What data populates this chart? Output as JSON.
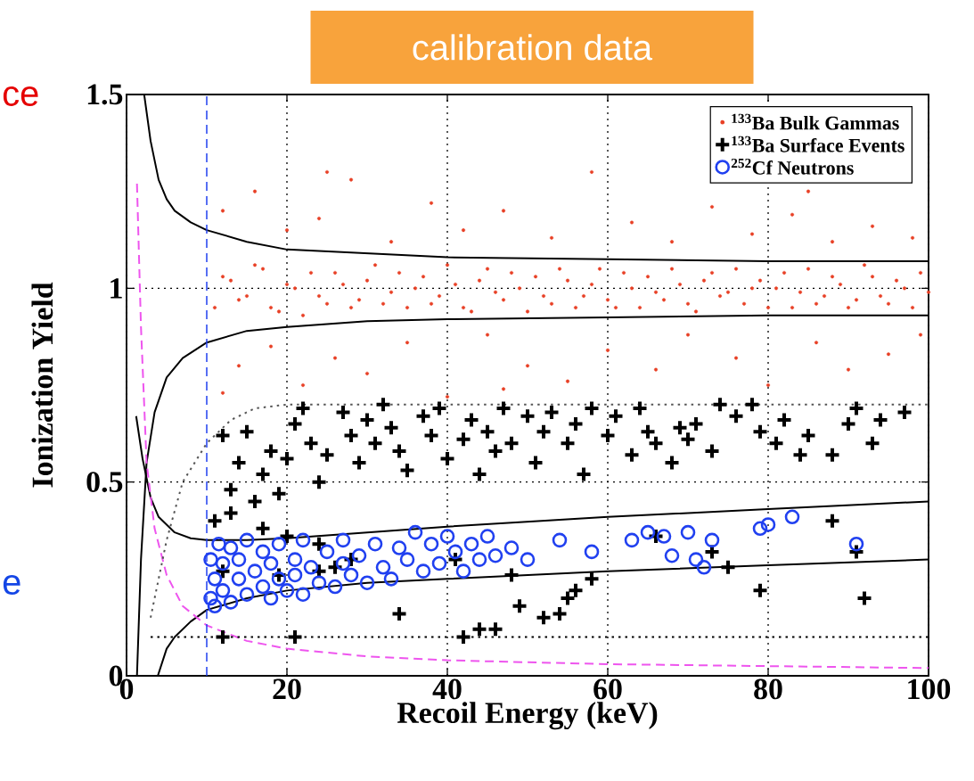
{
  "chart_data": {
    "type": "scatter",
    "title": "calibration data",
    "xlabel": "Recoil Energy (keV)",
    "ylabel": "Ionization Yield",
    "annotations": [
      "ce",
      "e"
    ],
    "xlim": [
      0,
      100
    ],
    "ylim": [
      0,
      1.5
    ],
    "xticks": [
      0,
      20,
      40,
      60,
      80,
      100
    ],
    "yticks": [
      0,
      0.5,
      1,
      1.5
    ],
    "grid": true,
    "legend": "top right",
    "ref_lines": [
      {
        "axis": "x",
        "value": 10,
        "color": "#2040f0",
        "line_style": "dashed"
      }
    ],
    "series": [
      {
        "name": "$^{133}$Ba Bulk Gammas",
        "marker": "circle",
        "color": "#e84025",
        "x": [
          11,
          13,
          15,
          17,
          19,
          21,
          23,
          25,
          27,
          29,
          31,
          33,
          35,
          37,
          39,
          41,
          43,
          45,
          47,
          49,
          51,
          53,
          55,
          57,
          59,
          61,
          63,
          65,
          67,
          69,
          71,
          73,
          75,
          77,
          79,
          81,
          83,
          85,
          87,
          89,
          91,
          93,
          95,
          97,
          99,
          12,
          14,
          16,
          18,
          20,
          22,
          24,
          26,
          28,
          30,
          32,
          34,
          36,
          38,
          40,
          42,
          44,
          46,
          48,
          50,
          52,
          54,
          56,
          58,
          60,
          62,
          64,
          66,
          68,
          70,
          72,
          74,
          76,
          78,
          80,
          82,
          84,
          86,
          88,
          90,
          92,
          94,
          96,
          98,
          100,
          12,
          14,
          16,
          18,
          20,
          22,
          24,
          26,
          28,
          30,
          33,
          35,
          38,
          40,
          42,
          45,
          47,
          50,
          53,
          55,
          58,
          60,
          63,
          66,
          68,
          70,
          73,
          76,
          78,
          80,
          83,
          86,
          88,
          90,
          93,
          95,
          98,
          99,
          12,
          25,
          47,
          85
        ],
        "values": [
          0.95,
          1.02,
          0.98,
          1.05,
          0.94,
          1.0,
          1.04,
          0.96,
          1.01,
          0.97,
          1.06,
          0.99,
          0.95,
          1.03,
          0.98,
          1.01,
          0.94,
          1.05,
          0.97,
          1.0,
          1.03,
          0.96,
          1.02,
          0.98,
          1.05,
          0.95,
          1.0,
          1.03,
          0.97,
          1.01,
          0.94,
          1.04,
          0.99,
          0.96,
          1.02,
          1.0,
          0.95,
          1.05,
          0.98,
          1.01,
          0.97,
          1.03,
          0.96,
          1.0,
          1.04,
          1.03,
          0.97,
          1.06,
          0.95,
          1.01,
          0.93,
          0.98,
          1.04,
          0.95,
          1.02,
          0.96,
          1.04,
          1.0,
          0.96,
          1.06,
          0.95,
          1.02,
          0.99,
          1.04,
          0.94,
          0.98,
          1.05,
          0.95,
          1.01,
          0.97,
          1.04,
          0.95,
          0.99,
          1.05,
          0.96,
          1.02,
          0.98,
          1.05,
          1.0,
          0.95,
          1.04,
          0.99,
          0.96,
          1.03,
          0.95,
          1.06,
          0.98,
          1.02,
          0.95,
          0.99,
          1.2,
          0.8,
          1.25,
          0.85,
          1.15,
          0.75,
          1.18,
          0.82,
          1.28,
          0.78,
          1.12,
          0.86,
          1.22,
          0.72,
          1.15,
          0.88,
          1.2,
          0.8,
          1.13,
          0.76,
          1.3,
          0.84,
          1.17,
          0.79,
          1.12,
          0.88,
          1.21,
          0.82,
          1.14,
          0.75,
          1.19,
          0.86,
          1.12,
          0.79,
          1.16,
          0.83,
          1.13,
          0.88,
          0.73,
          1.3,
          0.74,
          1.25
        ]
      },
      {
        "name": "$^{133}$Ba Surface Events",
        "marker": "cross",
        "color": "#000000",
        "x": [
          12,
          13,
          14,
          15,
          16,
          17,
          18,
          19,
          20,
          21,
          22,
          23,
          24,
          25,
          27,
          28,
          29,
          30,
          31,
          32,
          33,
          34,
          35,
          37,
          38,
          39,
          40,
          42,
          43,
          44,
          45,
          46,
          47,
          48,
          50,
          51,
          52,
          53,
          55,
          56,
          57,
          58,
          60,
          61,
          63,
          64,
          65,
          66,
          68,
          69,
          70,
          71,
          73,
          74,
          76,
          78,
          79,
          81,
          82,
          84,
          85,
          88,
          90,
          91,
          93,
          94,
          97,
          11,
          13,
          17,
          20,
          24,
          12,
          19,
          24,
          26,
          28,
          12,
          21,
          34,
          42,
          44,
          46,
          49,
          52,
          54,
          55,
          58,
          56,
          66,
          73,
          75,
          79,
          88,
          91,
          92,
          41,
          48
        ],
        "values": [
          0.62,
          0.48,
          0.55,
          0.63,
          0.45,
          0.52,
          0.58,
          0.47,
          0.56,
          0.65,
          0.69,
          0.6,
          0.5,
          0.57,
          0.68,
          0.62,
          0.55,
          0.66,
          0.6,
          0.7,
          0.64,
          0.58,
          0.53,
          0.67,
          0.62,
          0.69,
          0.56,
          0.61,
          0.66,
          0.52,
          0.63,
          0.58,
          0.69,
          0.6,
          0.67,
          0.55,
          0.63,
          0.68,
          0.6,
          0.65,
          0.52,
          0.69,
          0.62,
          0.67,
          0.57,
          0.69,
          0.63,
          0.6,
          0.55,
          0.64,
          0.61,
          0.65,
          0.58,
          0.7,
          0.67,
          0.7,
          0.63,
          0.6,
          0.66,
          0.57,
          0.62,
          0.57,
          0.65,
          0.69,
          0.6,
          0.66,
          0.68,
          0.4,
          0.42,
          0.38,
          0.36,
          0.34,
          0.27,
          0.26,
          0.27,
          0.28,
          0.3,
          0.1,
          0.1,
          0.16,
          0.1,
          0.12,
          0.12,
          0.18,
          0.15,
          0.16,
          0.2,
          0.25,
          0.22,
          0.36,
          0.32,
          0.28,
          0.22,
          0.4,
          0.32,
          0.2,
          0.3,
          0.26
        ]
      },
      {
        "name": "$^{252}$Cf Neutrons",
        "marker": "circle",
        "color": "#2040f0",
        "x": [
          10.5,
          10.5,
          11,
          11,
          11.5,
          12,
          12,
          13,
          13,
          14,
          14,
          15,
          15,
          16,
          17,
          17,
          18,
          18,
          19,
          19,
          20,
          21,
          21,
          22,
          22,
          23,
          24,
          25,
          26,
          27,
          27,
          28,
          29,
          30,
          31,
          32,
          33,
          34,
          35,
          36,
          37,
          38,
          39,
          40,
          41,
          42,
          43,
          44,
          45,
          46,
          48,
          50,
          54,
          58,
          63,
          65,
          67,
          68,
          70,
          71,
          72,
          73,
          79,
          80,
          83,
          91
        ],
        "values": [
          0.2,
          0.3,
          0.25,
          0.18,
          0.34,
          0.22,
          0.29,
          0.19,
          0.33,
          0.25,
          0.3,
          0.21,
          0.35,
          0.27,
          0.23,
          0.32,
          0.2,
          0.29,
          0.25,
          0.34,
          0.22,
          0.3,
          0.26,
          0.21,
          0.35,
          0.28,
          0.24,
          0.32,
          0.23,
          0.29,
          0.35,
          0.26,
          0.31,
          0.24,
          0.34,
          0.28,
          0.25,
          0.33,
          0.3,
          0.37,
          0.27,
          0.34,
          0.29,
          0.36,
          0.32,
          0.27,
          0.34,
          0.3,
          0.36,
          0.31,
          0.33,
          0.3,
          0.35,
          0.32,
          0.35,
          0.37,
          0.36,
          0.31,
          0.37,
          0.3,
          0.28,
          0.35,
          0.38,
          0.39,
          0.41,
          0.34
        ]
      },
      {
        "type": "line",
        "marker": "none",
        "line_style": "solid",
        "color": "#000000",
        "x": [
          2.2,
          3,
          4,
          5,
          6,
          8,
          10,
          15,
          20,
          30,
          40,
          60,
          80,
          100
        ],
        "values": [
          1.5,
          1.38,
          1.28,
          1.23,
          1.2,
          1.17,
          1.15,
          1.12,
          1.1,
          1.09,
          1.08,
          1.075,
          1.07,
          1.07
        ]
      },
      {
        "type": "line",
        "marker": "none",
        "line_style": "solid",
        "color": "#000000",
        "x": [
          1.3,
          1.8,
          2.5,
          3.5,
          5,
          7,
          10,
          15,
          20,
          30,
          40,
          60,
          80,
          100
        ],
        "values": [
          0,
          0.3,
          0.55,
          0.68,
          0.77,
          0.82,
          0.86,
          0.89,
          0.9,
          0.915,
          0.92,
          0.925,
          0.93,
          0.93
        ]
      },
      {
        "type": "line",
        "marker": "none",
        "line_style": "solid",
        "color": "#000000",
        "x": [
          1.2,
          2,
          3,
          4,
          6,
          8,
          10,
          15,
          20,
          30,
          40,
          60,
          80,
          100
        ],
        "values": [
          0.67,
          0.56,
          0.46,
          0.41,
          0.37,
          0.355,
          0.35,
          0.35,
          0.355,
          0.37,
          0.385,
          0.41,
          0.43,
          0.45
        ]
      },
      {
        "type": "line",
        "marker": "none",
        "line_style": "solid",
        "color": "#000000",
        "x": [
          3.9,
          5,
          6,
          8,
          10,
          15,
          20,
          30,
          40,
          60,
          80,
          100
        ],
        "values": [
          0,
          0.07,
          0.1,
          0.14,
          0.17,
          0.2,
          0.22,
          0.24,
          0.25,
          0.27,
          0.285,
          0.3
        ]
      },
      {
        "type": "line",
        "marker": "none",
        "line_style": "dashed",
        "color": "#ee55ee",
        "x": [
          1.3,
          1.8,
          2.5,
          3.5,
          5,
          7,
          10,
          15,
          20,
          30,
          40,
          60,
          80,
          100
        ],
        "values": [
          1.27,
          0.9,
          0.55,
          0.38,
          0.26,
          0.18,
          0.13,
          0.09,
          0.07,
          0.05,
          0.04,
          0.03,
          0.025,
          0.02
        ]
      },
      {
        "type": "line",
        "marker": "none",
        "line_style": "dotted",
        "color": "#000000",
        "x": [
          3,
          100
        ],
        "values": [
          0.1,
          0.1
        ]
      },
      {
        "type": "line",
        "marker": "none",
        "line_style": "dotted",
        "color": "#555555",
        "x": [
          3,
          5,
          7,
          10,
          13,
          16,
          20,
          100
        ],
        "values": [
          0.15,
          0.35,
          0.5,
          0.6,
          0.66,
          0.69,
          0.7,
          0.7
        ]
      }
    ]
  }
}
